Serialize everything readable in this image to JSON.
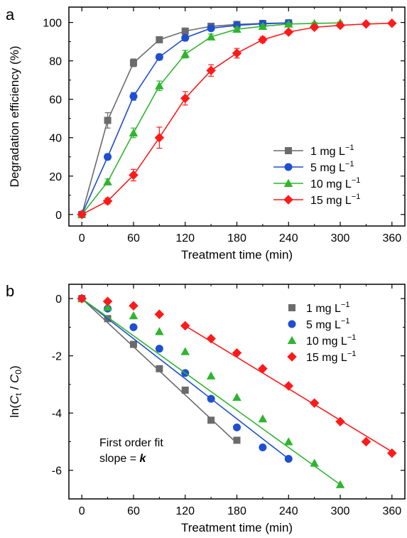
{
  "chart_data": [
    {
      "panel_label": "a",
      "type": "line",
      "title": "",
      "xlabel": "Treatment time (min)",
      "ylabel": "Degradation efficiency (%)",
      "xlim": [
        -15,
        375
      ],
      "ylim": [
        -6,
        108
      ],
      "xticks": [
        0,
        60,
        120,
        180,
        240,
        300,
        360
      ],
      "yticks": [
        0,
        20,
        40,
        60,
        80,
        100
      ],
      "grid": false,
      "legend": {
        "placement": "center-right"
      },
      "series": [
        {
          "name": "1 mg L",
          "unit_superscript": "−1",
          "color": "#6b6b6b",
          "marker": "square",
          "x": [
            0,
            30,
            60,
            90,
            120,
            150,
            180,
            210,
            240
          ],
          "y": [
            0,
            49,
            79,
            91,
            95.5,
            98,
            99,
            99.5,
            99.8
          ],
          "err": [
            0,
            4,
            2,
            1.5,
            1,
            1,
            0.5,
            0.5,
            0.5
          ]
        },
        {
          "name": "5 mg L",
          "unit_superscript": "−1",
          "color": "#1f4fd1",
          "marker": "circle",
          "x": [
            0,
            30,
            60,
            90,
            120,
            150,
            180,
            210,
            240
          ],
          "y": [
            0,
            30,
            61.5,
            82,
            92,
            97,
            98.5,
            99.3,
            99.7
          ],
          "err": [
            0,
            1.5,
            2,
            1.5,
            1.5,
            1,
            1,
            0.5,
            0.5
          ]
        },
        {
          "name": "10 mg L",
          "unit_superscript": "−1",
          "color": "#2fb52f",
          "marker": "triangle",
          "x": [
            0,
            30,
            60,
            90,
            120,
            150,
            180,
            210,
            240,
            270,
            300
          ],
          "y": [
            0,
            17,
            42.5,
            67,
            83.5,
            92.5,
            96.5,
            98,
            99.2,
            99.5,
            99.8
          ],
          "err": [
            0,
            1.5,
            2.5,
            2.5,
            2,
            1.5,
            1,
            1,
            0.5,
            0.5,
            0.5
          ]
        },
        {
          "name": "15 mg L",
          "unit_superscript": "−1",
          "color": "#ff1a1a",
          "marker": "diamond",
          "x": [
            0,
            30,
            60,
            90,
            120,
            150,
            180,
            210,
            240,
            270,
            300,
            330,
            360
          ],
          "y": [
            0,
            7,
            20.5,
            40,
            60.5,
            75,
            84,
            91,
            95,
            97.5,
            98.5,
            99.2,
            99.6
          ],
          "err": [
            0,
            1.5,
            3,
            5.5,
            3.5,
            3,
            2.5,
            1.5,
            1,
            1,
            1,
            0.5,
            0.5
          ]
        }
      ]
    },
    {
      "panel_label": "b",
      "type": "scatter",
      "title": "",
      "xlabel": "Treatment time (min)",
      "ylabel": "ln(C / C )",
      "ylabel_sub_1": "t",
      "ylabel_sub_2": "0",
      "xlim": [
        -15,
        375
      ],
      "ylim": [
        -7,
        0.5
      ],
      "xticks": [
        0,
        60,
        120,
        180,
        240,
        300,
        360
      ],
      "yticks": [
        0,
        -2,
        -4,
        -6
      ],
      "grid": false,
      "legend": {
        "placement": "top-right"
      },
      "annotation": [
        "First order fit",
        "slope = "
      ],
      "annotation_k": "k",
      "series": [
        {
          "name": "1 mg L",
          "unit_superscript": "−1",
          "color": "#6b6b6b",
          "marker": "square",
          "x": [
            0,
            30,
            60,
            90,
            120,
            150,
            180
          ],
          "y": [
            0,
            -0.7,
            -1.6,
            -2.45,
            -3.2,
            -4.25,
            -4.95
          ],
          "fit": {
            "x": [
              0,
              180
            ],
            "y": [
              0,
              -5.05
            ]
          }
        },
        {
          "name": "5 mg L",
          "unit_superscript": "−1",
          "color": "#1f4fd1",
          "marker": "circle",
          "x": [
            0,
            30,
            60,
            90,
            120,
            150,
            180,
            210,
            240
          ],
          "y": [
            0,
            -0.35,
            -1.0,
            -1.75,
            -2.6,
            -3.5,
            -4.5,
            -5.2,
            -5.6
          ],
          "fit": {
            "x": [
              0,
              240
            ],
            "y": [
              0,
              -5.6
            ]
          }
        },
        {
          "name": "10 mg L",
          "unit_superscript": "−1",
          "color": "#2fb52f",
          "marker": "triangle",
          "x": [
            0,
            30,
            60,
            90,
            120,
            150,
            180,
            210,
            240,
            270,
            300
          ],
          "y": [
            0,
            -0.3,
            -0.6,
            -1.15,
            -1.85,
            -2.7,
            -3.45,
            -4.2,
            -5.0,
            -5.75,
            -6.5
          ],
          "fit": {
            "x": [
              0,
              300
            ],
            "y": [
              0,
              -6.5
            ]
          }
        },
        {
          "name": "15 mg L",
          "unit_superscript": "−1",
          "color": "#ff1a1a",
          "marker": "diamond",
          "x": [
            0,
            30,
            60,
            90,
            120,
            150,
            180,
            210,
            240,
            270,
            300,
            330,
            360
          ],
          "y": [
            0,
            -0.1,
            -0.25,
            -0.55,
            -0.95,
            -1.4,
            -1.9,
            -2.45,
            -3.05,
            -3.65,
            -4.3,
            -5.0,
            -5.4
          ],
          "fit": {
            "x": [
              120,
              360
            ],
            "y": [
              -0.95,
              -5.35
            ]
          }
        }
      ]
    }
  ]
}
